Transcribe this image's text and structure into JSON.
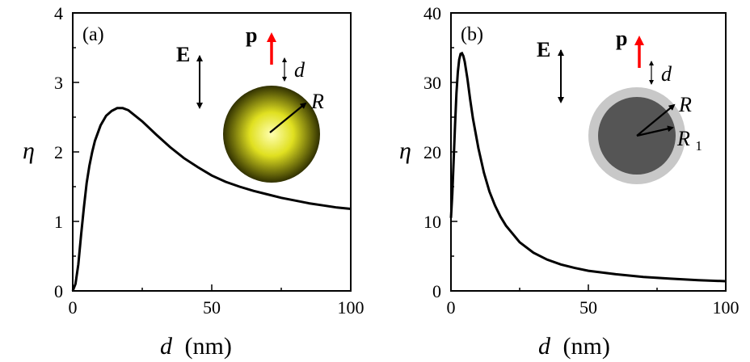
{
  "chart_data": [
    {
      "type": "line",
      "panel_label": "(a)",
      "xlabel_var": "d",
      "xlabel_unit": "(nm)",
      "ylabel": "η",
      "xlim": [
        0,
        100
      ],
      "ylim": [
        0,
        4
      ],
      "xticks": [
        "0",
        "50",
        "100"
      ],
      "yticks": [
        "0",
        "1",
        "2",
        "3",
        "4"
      ],
      "x": [
        0,
        1,
        2,
        3,
        4,
        5,
        6,
        7,
        8,
        10,
        12,
        14,
        16,
        18,
        20,
        25,
        30,
        35,
        40,
        45,
        50,
        55,
        60,
        65,
        70,
        75,
        80,
        85,
        90,
        95,
        100
      ],
      "y": [
        0,
        0.1,
        0.38,
        0.8,
        1.2,
        1.55,
        1.8,
        2.0,
        2.16,
        2.38,
        2.52,
        2.59,
        2.63,
        2.63,
        2.6,
        2.44,
        2.25,
        2.07,
        1.91,
        1.78,
        1.66,
        1.57,
        1.5,
        1.44,
        1.39,
        1.34,
        1.3,
        1.26,
        1.23,
        1.2,
        1.18
      ],
      "inset": {
        "field_label": "E",
        "dipole_label": "p",
        "distance_label": "d",
        "radius_label": "R",
        "dipole_color": "#ff0000",
        "sphere_center_color": "#ffffb0",
        "sphere_mid_color": "#e0e020",
        "sphere_edge_color": "#303000"
      }
    },
    {
      "type": "line",
      "panel_label": "(b)",
      "xlabel_var": "d",
      "xlabel_unit": "(nm)",
      "ylabel": "η",
      "xlim": [
        0,
        100
      ],
      "ylim": [
        0,
        40
      ],
      "xticks": [
        "0",
        "50",
        "100"
      ],
      "yticks": [
        "0",
        "10",
        "20",
        "30",
        "40"
      ],
      "x": [
        0,
        0.5,
        1,
        1.5,
        2,
        2.5,
        3,
        3.5,
        4,
        4.5,
        5,
        6,
        7,
        8,
        10,
        12,
        14,
        16,
        18,
        20,
        25,
        30,
        35,
        40,
        45,
        50,
        60,
        70,
        80,
        90,
        100
      ],
      "y": [
        10.5,
        14,
        19,
        24,
        28.5,
        31.5,
        33.3,
        34.1,
        34.2,
        33.8,
        33.0,
        30.5,
        27.5,
        24.8,
        20.5,
        17.0,
        14.3,
        12.3,
        10.7,
        9.4,
        7.0,
        5.5,
        4.5,
        3.8,
        3.3,
        2.9,
        2.4,
        2.0,
        1.75,
        1.55,
        1.4
      ],
      "inset": {
        "field_label": "E",
        "dipole_label": "p",
        "distance_label": "d",
        "radius_label": "R",
        "inner_radius_label": "R",
        "inner_radius_sub": "1",
        "dipole_color": "#ff0000",
        "shell_color": "#c8c8c8",
        "core_color": "#555555"
      }
    }
  ]
}
